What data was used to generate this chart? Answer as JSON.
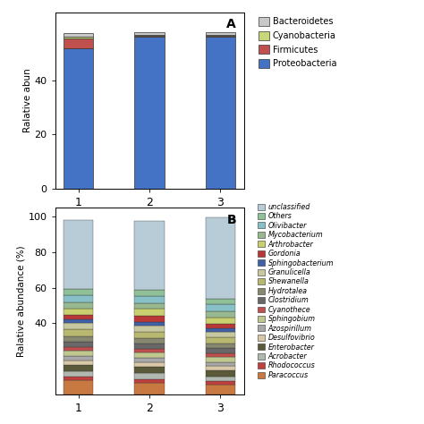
{
  "phylum_categories": [
    "1",
    "2",
    "3"
  ],
  "phylum_stack_order": [
    "Proteobacteria",
    "Firmicutes",
    "Cyanobacteria",
    "Bacteroidetes"
  ],
  "phylum_legend_order": [
    "Bacteroidetes",
    "Cyanobacteria",
    "Firmicutes",
    "Proteobacteria"
  ],
  "phylum_colors": {
    "Proteobacteria": "#4472c4",
    "Firmicutes": "#c0504d",
    "Cyanobacteria": "#c8d67a",
    "Bacteroidetes": "#c8c8c8"
  },
  "phylum_data": {
    "Proteobacteria": [
      52.0,
      56.0,
      56.0
    ],
    "Firmicutes": [
      3.5,
      0.5,
      0.5
    ],
    "Cyanobacteria": [
      0.5,
      0.3,
      0.3
    ],
    "Bacteroidetes": [
      1.5,
      1.0,
      1.0
    ]
  },
  "phylum_ylabel": "Ralative abun",
  "phylum_yticks": [
    0,
    20,
    40
  ],
  "phylum_ylim": [
    0,
    65
  ],
  "genus_categories": [
    "1",
    "2",
    "3"
  ],
  "genus_ylabel": "Ralative abundance (%)",
  "genus_yticks": [
    40,
    60,
    80,
    100
  ],
  "genus_ylim": [
    0,
    105
  ],
  "genus_stack_order": [
    "Paracoccus",
    "Rhodococcus",
    "Acrobacter",
    "Enterobacter",
    "Desulfovibrio",
    "Azospirillum",
    "Sphingobium",
    "Cyanothece",
    "Clostridium",
    "Hydrotalea",
    "Shewanella",
    "Granulicella",
    "Sphingobacterium",
    "Gordonia",
    "Arthrobacter",
    "Mycobacterium",
    "Olivibacter",
    "Others",
    "unclassified"
  ],
  "genus_colors": {
    "Paracoccus": "#c87941",
    "Rhodococcus": "#c04040",
    "Acrobacter": "#b0b8b0",
    "Enterobacter": "#5a5a3a",
    "Desulfovibrio": "#d8c8a8",
    "Azospirillum": "#a8a8a8",
    "Sphingobium": "#c0c890",
    "Cyanothece": "#c05050",
    "Clostridium": "#686868",
    "Hydrotalea": "#888870",
    "Shewanella": "#b8b870",
    "Granulicella": "#c8c8a0",
    "Sphingobacterium": "#4060a8",
    "Gordonia": "#b83838",
    "Arthrobacter": "#c8d070",
    "Mycobacterium": "#98b890",
    "Olivibacter": "#88c0c8",
    "Others": "#90c098",
    "unclassified": "#b8ccd8"
  },
  "genus_data": {
    "Paracoccus": [
      8.0,
      6.5,
      5.5
    ],
    "Rhodococcus": [
      2.0,
      2.0,
      2.0
    ],
    "Acrobacter": [
      3.0,
      3.5,
      2.5
    ],
    "Enterobacter": [
      3.5,
      3.5,
      3.5
    ],
    "Desulfovibrio": [
      2.5,
      2.5,
      2.5
    ],
    "Azospirillum": [
      2.5,
      2.5,
      2.0
    ],
    "Sphingobium": [
      3.0,
      3.0,
      3.0
    ],
    "Cyanothece": [
      2.0,
      2.0,
      2.0
    ],
    "Clostridium": [
      3.0,
      3.0,
      3.0
    ],
    "Hydrotalea": [
      3.0,
      3.0,
      2.5
    ],
    "Shewanella": [
      4.0,
      3.5,
      3.5
    ],
    "Granulicella": [
      3.5,
      3.5,
      3.0
    ],
    "Sphingobacterium": [
      2.0,
      2.0,
      2.0
    ],
    "Gordonia": [
      2.5,
      3.5,
      2.5
    ],
    "Arthrobacter": [
      3.5,
      4.0,
      3.5
    ],
    "Mycobacterium": [
      4.0,
      3.5,
      3.5
    ],
    "Olivibacter": [
      4.0,
      4.0,
      4.5
    ],
    "Others": [
      3.5,
      3.5,
      3.0
    ],
    "unclassified": [
      38.5,
      38.5,
      45.5
    ]
  }
}
